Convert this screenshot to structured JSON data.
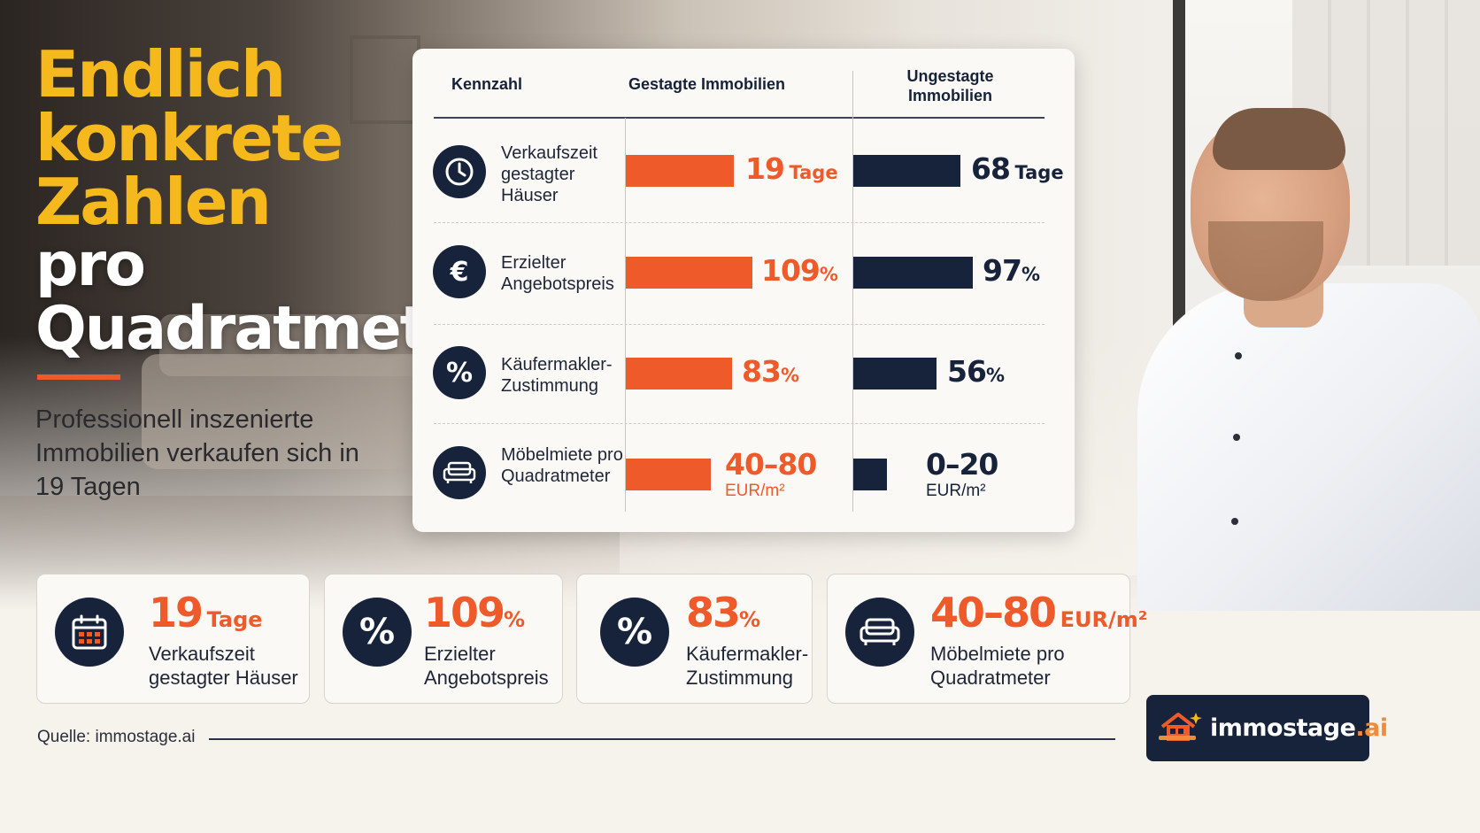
{
  "headline": {
    "line1": "Endlich",
    "line2": "konkrete",
    "line3": "Zahlen",
    "line4": "pro",
    "line5": "Quadratmeter"
  },
  "subtitle": "Professionell inszenierte Immobilien verkaufen sich in 19 Tagen",
  "table": {
    "headers": {
      "metric": "Kennzahl",
      "staged": "Gestagte Immobilien",
      "unstaged": "Ungestagte Immobilien"
    },
    "rows": [
      {
        "icon": "clock-icon",
        "label": "Verkaufszeit gestagter Häuser",
        "staged_value": 19,
        "staged_display": "19",
        "staged_unit": "Tage",
        "unstaged_value": 68,
        "unstaged_display": "68",
        "unstaged_unit": "Tage"
      },
      {
        "icon": "euro-icon",
        "icon_glyph": "€",
        "label": "Erzielter Angebotspreis",
        "staged_value": 109,
        "staged_display": "109",
        "staged_unit": "%",
        "unstaged_value": 97,
        "unstaged_display": "97",
        "unstaged_unit": "%"
      },
      {
        "icon": "percent-icon",
        "icon_glyph": "%",
        "label": "Käufermakler-Zustimmung",
        "staged_value": 83,
        "staged_display": "83",
        "staged_unit": "%",
        "unstaged_value": 56,
        "unstaged_display": "56",
        "unstaged_unit": "%"
      },
      {
        "icon": "sofa-icon",
        "label": "Möbelmiete pro Quadratmeter",
        "staged_display": "40–80",
        "staged_unit": "EUR/m²",
        "unstaged_display": "0–20",
        "unstaged_unit": "EUR/m²"
      }
    ]
  },
  "stats": [
    {
      "icon": "calendar-icon",
      "value": "19",
      "unit": "Tage",
      "label_line1": "Verkaufszeit",
      "label_line2": "gestagter Häuser"
    },
    {
      "icon": "percent-icon",
      "icon_glyph": "%",
      "value": "109",
      "unit": "%",
      "label_line1": "Erzielter",
      "label_line2": "Angebotspreis"
    },
    {
      "icon": "percent-icon",
      "icon_glyph": "%",
      "value": "83",
      "unit": "%",
      "label_line1": "Käufermakler-",
      "label_line2": "Zustimmung"
    },
    {
      "icon": "sofa-icon",
      "value": "40–80",
      "unit": "EUR/m²",
      "label_line1": "Möbelmiete pro",
      "label_line2": "Quadratmeter"
    }
  ],
  "footer": {
    "source": "Quelle: immostage.ai",
    "brand_main": "immostage",
    "brand_tld": ".ai"
  },
  "colors": {
    "accent_yellow": "#f5b81d",
    "accent_orange": "#ee5a2a",
    "navy": "#16233a",
    "card_bg": "#fbf9f6"
  }
}
